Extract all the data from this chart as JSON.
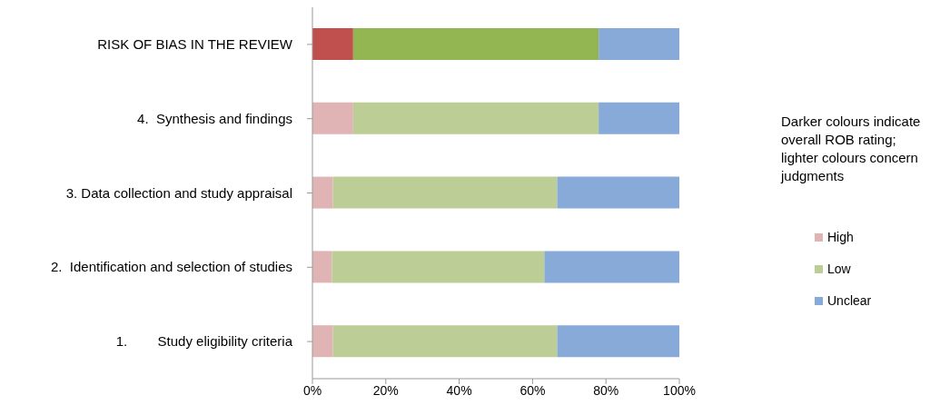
{
  "chart_data": {
    "type": "bar",
    "orientation": "horizontal",
    "stacked": true,
    "categories": [
      "RISK OF BIAS IN THE REVIEW",
      "4.  Synthesis and findings",
      "3. Data collection and study appraisal",
      "2.  Identification and selection of studies",
      "1.        Study eligibility criteria"
    ],
    "series": [
      {
        "name": "High",
        "color": "#e0b4b4",
        "colors": [
          "#c0504d",
          "#e0b4b4",
          "#e0b4b4",
          "#e0b4b4",
          "#e0b4b4"
        ],
        "values": [
          11.1,
          11.1,
          5.6,
          5.3,
          5.6
        ]
      },
      {
        "name": "Low",
        "color": "#bccd96",
        "colors": [
          "#93b653",
          "#bccd96",
          "#bccd96",
          "#bccd96",
          "#bccd96"
        ],
        "values": [
          66.9,
          66.9,
          61.1,
          57.9,
          61.1
        ]
      },
      {
        "name": "Unclear",
        "color": "#87aad8",
        "values": [
          22,
          22,
          33.3,
          36.8,
          33.3
        ]
      }
    ],
    "xlim": [
      0,
      100
    ],
    "xticks": [
      {
        "value": 0,
        "label": "0%"
      },
      {
        "value": 20,
        "label": "20%"
      },
      {
        "value": 40,
        "label": "40%"
      },
      {
        "value": 60,
        "label": "60%"
      },
      {
        "value": 80,
        "label": "80%"
      },
      {
        "value": 100,
        "label": "100%"
      }
    ],
    "annotations": [
      "Darker colours indicate overall ROB rating;  lighter colours concern judgments"
    ],
    "legend": "right",
    "grid": false
  }
}
